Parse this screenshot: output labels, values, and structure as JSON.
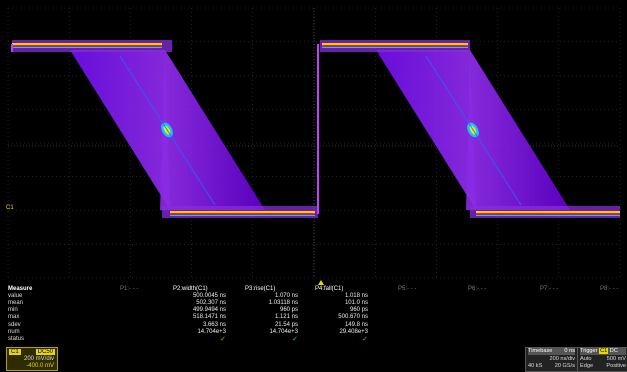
{
  "channel_marker": "C1",
  "measure": {
    "title": "Measure",
    "rows": [
      "value",
      "mean",
      "min",
      "max",
      "sdev",
      "num",
      "status"
    ],
    "columns": [
      {
        "name": "P1:- - -",
        "active": false,
        "values": []
      },
      {
        "name": "P2:width(C1)",
        "active": true,
        "values": [
          "500.0045 ns",
          "502.307 ns",
          "499.9494 ns",
          "518.1471 ns",
          "3.663 ns",
          "14.704e+3"
        ],
        "status": "✓"
      },
      {
        "name": "P3:rise(C1)",
        "active": true,
        "values": [
          "1.070 ns",
          "1.03118 ns",
          "960 ps",
          "1.121 ns",
          "21.54 ps",
          "14.704e+3"
        ],
        "status": "✓"
      },
      {
        "name": "P4:fall(C1)",
        "active": true,
        "values": [
          "1.018 ns",
          "101.0 ns",
          "960 ps",
          "500.670 ns",
          "149.8 ns",
          "29.408e+3"
        ],
        "status": "✓"
      },
      {
        "name": "P5:- - -",
        "active": false,
        "values": []
      },
      {
        "name": "P6:- - -",
        "active": false,
        "values": []
      },
      {
        "name": "P7:- - -",
        "active": false,
        "values": []
      },
      {
        "name": "P8:- - -",
        "active": false,
        "values": []
      }
    ]
  },
  "channel_box": {
    "tag": "C1",
    "coupling": "DC50",
    "scale": "200 mV/div",
    "offset": "-400.0 mV"
  },
  "timebase": {
    "title": "Timebase",
    "delay": "0 ns",
    "scale": "200 ns/div",
    "samples": "40 kS",
    "rate": "20 GS/s"
  },
  "trigger": {
    "title": "Trigger",
    "source": "C1",
    "coupling": "DC",
    "mode": "Auto",
    "level": "500 mV",
    "type": "Edge",
    "slope": "Positive"
  },
  "colors": {
    "trace_purple": "#8a2be2",
    "trace_violet": "#a020f0",
    "trace_hot": "#ff2020",
    "trace_warm": "#ffd000",
    "channel_yellow": "#e8d600"
  }
}
